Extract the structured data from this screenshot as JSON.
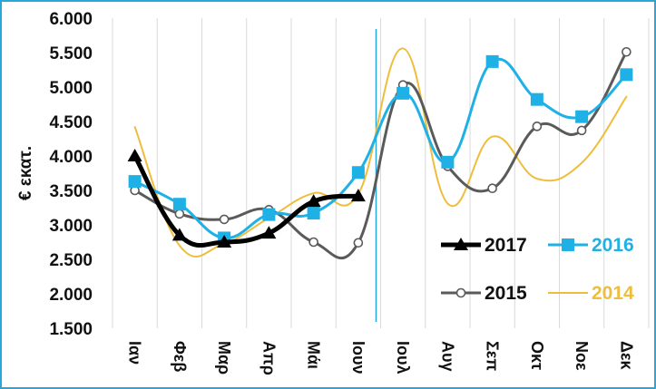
{
  "chart_data": {
    "type": "line",
    "categories": [
      "Ιαν",
      "Φεβ",
      "Μαρ",
      "Απρ",
      "Μάι",
      "Ιουν",
      "Ιουλ",
      "Αυγ",
      "Σεπ",
      "Οκτ",
      "Νοε",
      "Δεκ"
    ],
    "ylabel": "€ εκατ.",
    "ylim": [
      1500,
      6000
    ],
    "yticks": [
      1500,
      2000,
      2500,
      3000,
      3500,
      4000,
      4500,
      5000,
      5500,
      6000
    ],
    "ytick_labels": [
      "1.500",
      "2.000",
      "2.500",
      "3.000",
      "3.500",
      "4.000",
      "4.500",
      "5.000",
      "5.500",
      "6.000"
    ],
    "grid": "vertical",
    "legend_position": "bottom-right",
    "series": [
      {
        "name": "2017",
        "color": "#000000",
        "marker": "triangle",
        "values": [
          4000,
          2850,
          2750,
          2880,
          3340,
          3420,
          null,
          null,
          null,
          null,
          null,
          null
        ]
      },
      {
        "name": "2016",
        "color": "#1fb1e6",
        "marker": "square",
        "values": [
          3630,
          3300,
          2810,
          3150,
          3170,
          3760,
          4910,
          3910,
          5370,
          4820,
          4570,
          5180
        ]
      },
      {
        "name": "2015",
        "color": "#5a5a5a",
        "marker": "circle",
        "values": [
          3500,
          3160,
          3080,
          3220,
          2750,
          2740,
          5030,
          3850,
          3530,
          4430,
          4370,
          5510
        ]
      },
      {
        "name": "2014",
        "color": "#efbd3c",
        "marker": "none",
        "values": [
          4420,
          2700,
          2730,
          3100,
          3460,
          3450,
          5560,
          3310,
          4280,
          3670,
          3900,
          4860
        ]
      }
    ],
    "annotation": {
      "type": "vertical-line",
      "color": "#2aa7d9",
      "between": [
        "Ιουν",
        "Ιουλ"
      ]
    }
  }
}
